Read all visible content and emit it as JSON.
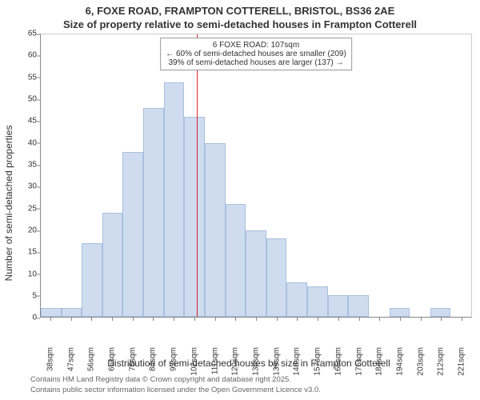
{
  "title": "6, FOXE ROAD, FRAMPTON COTTERELL, BRISTOL, BS36 2AE",
  "subtitle": "Size of property relative to semi-detached houses in Frampton Cotterell",
  "chart": {
    "type": "histogram",
    "ylabel": "Number of semi-detached properties",
    "xlabel": "Distribution of semi-detached houses by size in Frampton Cotterell",
    "ylim": [
      0,
      65
    ],
    "ytick_step": 5,
    "bar_color": "#cfdcef",
    "bar_border_color": "#a8bfe0",
    "background_color": "#ffffff",
    "axis_color": "#888888",
    "bins": [
      {
        "label": "38sqm",
        "value": 2
      },
      {
        "label": "47sqm",
        "value": 2
      },
      {
        "label": "56sqm",
        "value": 17
      },
      {
        "label": "65sqm",
        "value": 24
      },
      {
        "label": "75sqm",
        "value": 38
      },
      {
        "label": "84sqm",
        "value": 48
      },
      {
        "label": "93sqm",
        "value": 54
      },
      {
        "label": "102sqm",
        "value": 46
      },
      {
        "label": "111sqm",
        "value": 40
      },
      {
        "label": "120sqm",
        "value": 26
      },
      {
        "label": "130sqm",
        "value": 20
      },
      {
        "label": "139sqm",
        "value": 18
      },
      {
        "label": "148sqm",
        "value": 8
      },
      {
        "label": "157sqm",
        "value": 7
      },
      {
        "label": "166sqm",
        "value": 5
      },
      {
        "label": "175sqm",
        "value": 5
      },
      {
        "label": "184sqm",
        "value": 0
      },
      {
        "label": "194sqm",
        "value": 2
      },
      {
        "label": "203sqm",
        "value": 0
      },
      {
        "label": "212sqm",
        "value": 2
      },
      {
        "label": "221sqm",
        "value": 0
      }
    ],
    "marker": {
      "color": "#d9252a",
      "bin_index": 7.6,
      "callout_line1": "6 FOXE ROAD: 107sqm",
      "callout_line2": "← 60% of semi-detached houses are smaller (209)",
      "callout_line3": "39% of semi-detached houses are larger (137) →"
    },
    "label_fontsize": 12,
    "tick_fontsize": 10,
    "title_fontsize": 13
  },
  "footer": {
    "line1": "Contains HM Land Registry data © Crown copyright and database right 2025.",
    "line2": "Contains public sector information licensed under the Open Government Licence v3.0."
  }
}
